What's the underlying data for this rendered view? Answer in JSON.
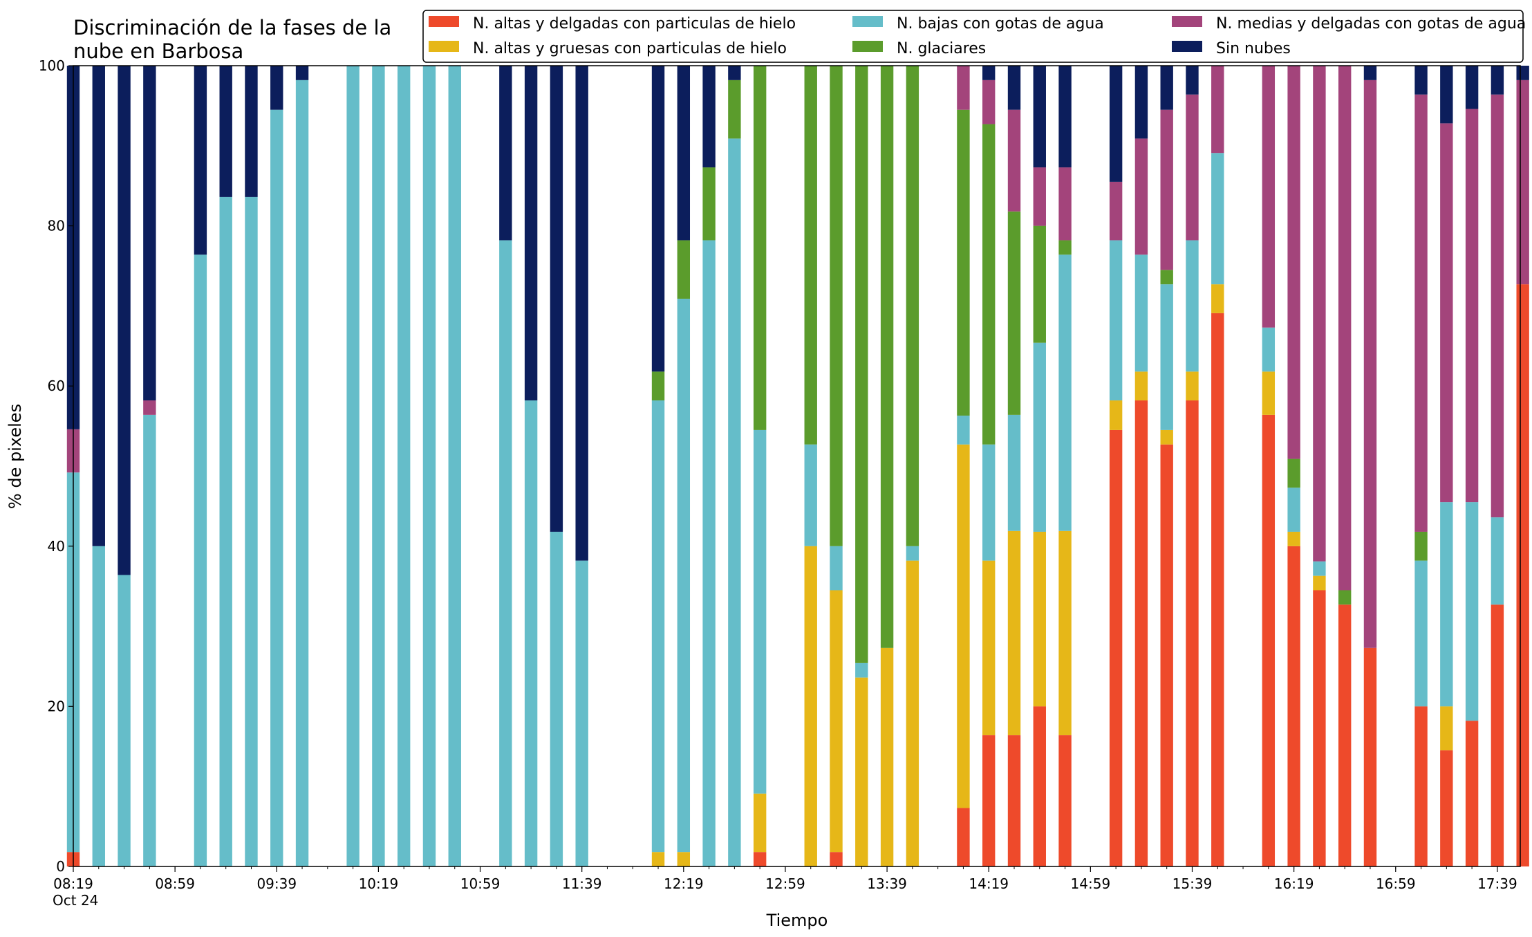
{
  "chart_data": {
    "type": "bar",
    "stacked": true,
    "title_lines": [
      "Discriminación de la fases de la",
      "nube en Barbosa"
    ],
    "xlabel": "Tiempo",
    "ylabel": "% de pixeles",
    "ylim": [
      0,
      100
    ],
    "yticks": [
      0,
      20,
      40,
      60,
      80,
      100
    ],
    "xlim": [
      499,
      1068
    ],
    "x_unit": "minutes of day (Oct 24)",
    "x_tick_labels": [
      {
        "x": 499,
        "lines": [
          "08:19",
          "Oct 24"
        ]
      },
      {
        "x": 539,
        "lines": [
          "08:59"
        ]
      },
      {
        "x": 579,
        "lines": [
          "09:39"
        ]
      },
      {
        "x": 619,
        "lines": [
          "10:19"
        ]
      },
      {
        "x": 659,
        "lines": [
          "10:59"
        ]
      },
      {
        "x": 699,
        "lines": [
          "11:39"
        ]
      },
      {
        "x": 739,
        "lines": [
          "12:19"
        ]
      },
      {
        "x": 779,
        "lines": [
          "12:59"
        ]
      },
      {
        "x": 819,
        "lines": [
          "13:39"
        ]
      },
      {
        "x": 859,
        "lines": [
          "14:19"
        ]
      },
      {
        "x": 899,
        "lines": [
          "14:59"
        ]
      },
      {
        "x": 939,
        "lines": [
          "15:39"
        ]
      },
      {
        "x": 979,
        "lines": [
          "16:19"
        ]
      },
      {
        "x": 1019,
        "lines": [
          "16:59"
        ]
      },
      {
        "x": 1059,
        "lines": [
          "17:39"
        ]
      }
    ],
    "x_minor_step": 10,
    "bar_width": 5,
    "grid": false,
    "legend_position": "top-right",
    "legend_columns": 3,
    "legend_order": [
      "altas_delgadas",
      "altas_gruesas",
      "bajas_agua",
      "glaciares",
      "medias_agua",
      "sin_nubes"
    ],
    "stack_order": [
      "altas_delgadas",
      "altas_gruesas",
      "bajas_agua",
      "glaciares",
      "medias_agua",
      "sin_nubes"
    ],
    "series": [
      {
        "key": "altas_delgadas",
        "name": "N. altas y delgadas con particulas de hielo",
        "color": "#ee4a2b"
      },
      {
        "key": "altas_gruesas",
        "name": "N. altas y gruesas con particulas de hielo",
        "color": "#e6b718"
      },
      {
        "key": "bajas_agua",
        "name": "N. bajas con gotas de agua",
        "color": "#65bdc9"
      },
      {
        "key": "glaciares",
        "name": "N. glaciares",
        "color": "#5b9c2c"
      },
      {
        "key": "medias_agua",
        "name": "N. medias y delgadas con gotas de agua",
        "color": "#a3447b"
      },
      {
        "key": "sin_nubes",
        "name": "Sin nubes",
        "color": "#0c1e5c"
      }
    ],
    "bars": [
      {
        "x": 499,
        "values": [
          1.8,
          0,
          47.4,
          0,
          5.4,
          45.4
        ]
      },
      {
        "x": 509,
        "values": [
          0,
          0,
          40,
          0,
          0,
          60
        ]
      },
      {
        "x": 519,
        "values": [
          0,
          0,
          36.4,
          0,
          0,
          63.6
        ]
      },
      {
        "x": 529,
        "values": [
          0,
          0,
          56.4,
          0,
          1.8,
          41.8
        ]
      },
      {
        "x": 549,
        "values": [
          0,
          0,
          76.4,
          0,
          0,
          23.6
        ]
      },
      {
        "x": 559,
        "values": [
          0,
          0,
          83.6,
          0,
          0,
          16.4
        ]
      },
      {
        "x": 569,
        "values": [
          0,
          0,
          83.6,
          0,
          0,
          16.4
        ]
      },
      {
        "x": 579,
        "values": [
          0,
          0,
          94.5,
          0,
          0,
          5.5
        ]
      },
      {
        "x": 589,
        "values": [
          0,
          0,
          98.2,
          0,
          0,
          1.8
        ]
      },
      {
        "x": 609,
        "values": [
          0,
          0,
          100,
          0,
          0,
          0
        ]
      },
      {
        "x": 619,
        "values": [
          0,
          0,
          100,
          0,
          0,
          0
        ]
      },
      {
        "x": 629,
        "values": [
          0,
          0,
          100,
          0,
          0,
          0
        ]
      },
      {
        "x": 639,
        "values": [
          0,
          0,
          100,
          0,
          0,
          0
        ]
      },
      {
        "x": 649,
        "values": [
          0,
          0,
          100,
          0,
          0,
          0
        ]
      },
      {
        "x": 669,
        "values": [
          0,
          0,
          78.2,
          0,
          0,
          21.8
        ]
      },
      {
        "x": 679,
        "values": [
          0,
          0,
          58.2,
          0,
          0,
          41.8
        ]
      },
      {
        "x": 689,
        "values": [
          0,
          0,
          41.8,
          0,
          0,
          58.2
        ]
      },
      {
        "x": 699,
        "values": [
          0,
          0,
          38.2,
          0,
          0,
          61.8
        ]
      },
      {
        "x": 729,
        "values": [
          0,
          1.8,
          56.4,
          3.6,
          0,
          38.2
        ]
      },
      {
        "x": 739,
        "values": [
          0,
          1.8,
          69.1,
          7.3,
          0,
          21.8
        ]
      },
      {
        "x": 749,
        "values": [
          0,
          0,
          78.2,
          9.1,
          0,
          12.7
        ]
      },
      {
        "x": 759,
        "values": [
          0,
          0,
          90.9,
          7.3,
          0,
          1.8
        ]
      },
      {
        "x": 769,
        "values": [
          1.8,
          7.3,
          45.4,
          45.5,
          0,
          0
        ]
      },
      {
        "x": 789,
        "values": [
          0,
          40,
          12.7,
          47.3,
          0,
          0
        ]
      },
      {
        "x": 799,
        "values": [
          1.8,
          32.7,
          5.5,
          60,
          0,
          0
        ]
      },
      {
        "x": 809,
        "values": [
          0,
          23.6,
          1.8,
          74.6,
          0,
          0
        ]
      },
      {
        "x": 819,
        "values": [
          0,
          27.3,
          0,
          72.7,
          0,
          0
        ]
      },
      {
        "x": 829,
        "values": [
          0,
          38.2,
          1.8,
          60,
          0,
          0
        ]
      },
      {
        "x": 849,
        "values": [
          7.3,
          45.4,
          3.6,
          38.2,
          5.5,
          0
        ]
      },
      {
        "x": 859,
        "values": [
          16.4,
          21.8,
          14.5,
          40,
          5.5,
          1.8
        ]
      },
      {
        "x": 869,
        "values": [
          16.4,
          25.5,
          14.5,
          25.4,
          12.7,
          5.5
        ]
      },
      {
        "x": 879,
        "values": [
          20,
          21.8,
          23.6,
          14.6,
          7.3,
          12.7
        ]
      },
      {
        "x": 889,
        "values": [
          16.4,
          25.5,
          34.5,
          1.8,
          9.1,
          12.7
        ]
      },
      {
        "x": 909,
        "values": [
          54.5,
          3.7,
          20,
          0,
          7.3,
          14.5
        ]
      },
      {
        "x": 919,
        "values": [
          58.2,
          3.6,
          14.6,
          0,
          14.5,
          9.1
        ]
      },
      {
        "x": 929,
        "values": [
          52.7,
          1.8,
          18.2,
          1.8,
          20,
          5.5
        ]
      },
      {
        "x": 939,
        "values": [
          58.2,
          3.6,
          16.4,
          0,
          18.2,
          3.6
        ]
      },
      {
        "x": 949,
        "values": [
          69.1,
          3.6,
          16.4,
          0,
          10.9,
          0
        ]
      },
      {
        "x": 969,
        "values": [
          56.4,
          5.4,
          5.5,
          0,
          32.7,
          0
        ]
      },
      {
        "x": 979,
        "values": [
          40,
          1.8,
          5.5,
          3.6,
          49.1,
          0
        ]
      },
      {
        "x": 989,
        "values": [
          34.5,
          1.8,
          1.8,
          0,
          61.9,
          0
        ]
      },
      {
        "x": 999,
        "values": [
          32.7,
          0,
          0,
          1.8,
          65.5,
          0
        ]
      },
      {
        "x": 1009,
        "values": [
          27.3,
          0,
          0,
          0,
          70.9,
          1.8
        ]
      },
      {
        "x": 1029,
        "values": [
          20,
          0,
          18.2,
          3.6,
          54.6,
          3.6
        ]
      },
      {
        "x": 1039,
        "values": [
          14.5,
          5.5,
          25.5,
          0,
          47.3,
          7.2
        ]
      },
      {
        "x": 1049,
        "values": [
          18.2,
          0,
          27.3,
          0,
          49.1,
          5.4
        ]
      },
      {
        "x": 1059,
        "values": [
          32.7,
          0,
          10.9,
          0,
          52.8,
          3.6
        ]
      },
      {
        "x": 1069,
        "values": [
          72.7,
          0,
          0,
          0,
          25.5,
          1.8
        ]
      }
    ]
  }
}
